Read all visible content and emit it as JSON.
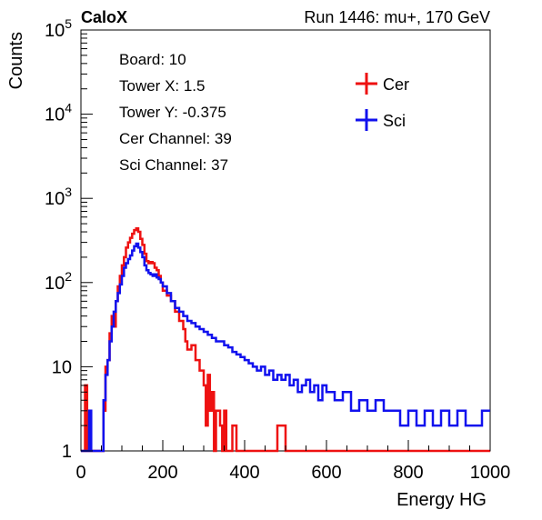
{
  "chart_data": {
    "type": "line",
    "title_left": "CaloX",
    "title_right": "Run 1446: mu+, 170 GeV",
    "xlabel": "Energy HG",
    "ylabel": "Counts",
    "xlim": [
      0,
      1000
    ],
    "ylim": [
      1,
      100000
    ],
    "y_scale": "log",
    "x_ticks": [
      "0",
      "200",
      "400",
      "600",
      "800",
      "1000"
    ],
    "y_ticks": [
      {
        "base": "1",
        "exp": ""
      },
      {
        "base": "10",
        "exp": ""
      },
      {
        "base": "10",
        "exp": "2"
      },
      {
        "base": "10",
        "exp": "3"
      },
      {
        "base": "10",
        "exp": "4"
      },
      {
        "base": "10",
        "exp": "5"
      }
    ],
    "info_box": [
      "Board: 10",
      "Tower X: 1.5",
      "Tower Y: -0.375",
      "Cer Channel: 39",
      "Sci Channel: 37"
    ],
    "legend_position": "top-right",
    "series": [
      {
        "name": "Cer",
        "color": "#ee1111",
        "points": [
          [
            0,
            1
          ],
          [
            10,
            6
          ],
          [
            15,
            1
          ],
          [
            20,
            1
          ],
          [
            30,
            1
          ],
          [
            40,
            1
          ],
          [
            50,
            1
          ],
          [
            55,
            3
          ],
          [
            60,
            10
          ],
          [
            65,
            12
          ],
          [
            70,
            25
          ],
          [
            75,
            40
          ],
          [
            80,
            30
          ],
          [
            85,
            60
          ],
          [
            90,
            90
          ],
          [
            95,
            120
          ],
          [
            100,
            160
          ],
          [
            105,
            200
          ],
          [
            110,
            260
          ],
          [
            115,
            300
          ],
          [
            120,
            340
          ],
          [
            125,
            380
          ],
          [
            130,
            420
          ],
          [
            135,
            440
          ],
          [
            140,
            400
          ],
          [
            145,
            330
          ],
          [
            150,
            280
          ],
          [
            155,
            220
          ],
          [
            160,
            180
          ],
          [
            165,
            170
          ],
          [
            170,
            175
          ],
          [
            175,
            170
          ],
          [
            180,
            150
          ],
          [
            185,
            140
          ],
          [
            190,
            120
          ],
          [
            195,
            100
          ],
          [
            200,
            80
          ],
          [
            210,
            70
          ],
          [
            220,
            60
          ],
          [
            230,
            45
          ],
          [
            240,
            35
          ],
          [
            250,
            28
          ],
          [
            255,
            20
          ],
          [
            260,
            16
          ],
          [
            270,
            18
          ],
          [
            280,
            12
          ],
          [
            290,
            9
          ],
          [
            300,
            6
          ],
          [
            305,
            2
          ],
          [
            310,
            8
          ],
          [
            315,
            3
          ],
          [
            320,
            5
          ],
          [
            325,
            1
          ],
          [
            330,
            3
          ],
          [
            340,
            2
          ],
          [
            345,
            1
          ],
          [
            350,
            3
          ],
          [
            355,
            1
          ],
          [
            360,
            1
          ],
          [
            370,
            2
          ],
          [
            380,
            1
          ],
          [
            390,
            1
          ],
          [
            400,
            1
          ],
          [
            420,
            1
          ],
          [
            440,
            1
          ],
          [
            460,
            1
          ],
          [
            480,
            2
          ],
          [
            500,
            1
          ],
          [
            520,
            1
          ],
          [
            540,
            1
          ],
          [
            560,
            1
          ],
          [
            580,
            1
          ],
          [
            600,
            1
          ],
          [
            650,
            1
          ],
          [
            700,
            1
          ],
          [
            750,
            1
          ],
          [
            800,
            1
          ],
          [
            850,
            1
          ],
          [
            900,
            1
          ],
          [
            950,
            1
          ],
          [
            1000,
            1
          ]
        ]
      },
      {
        "name": "Sci",
        "color": "#1111ee",
        "points": [
          [
            0,
            1
          ],
          [
            10,
            1
          ],
          [
            20,
            3
          ],
          [
            25,
            1
          ],
          [
            30,
            1
          ],
          [
            40,
            1
          ],
          [
            50,
            1
          ],
          [
            55,
            4
          ],
          [
            60,
            8
          ],
          [
            65,
            12
          ],
          [
            70,
            20
          ],
          [
            75,
            30
          ],
          [
            80,
            45
          ],
          [
            85,
            60
          ],
          [
            90,
            75
          ],
          [
            95,
            95
          ],
          [
            100,
            120
          ],
          [
            105,
            150
          ],
          [
            110,
            170
          ],
          [
            115,
            190
          ],
          [
            120,
            210
          ],
          [
            125,
            240
          ],
          [
            130,
            270
          ],
          [
            135,
            290
          ],
          [
            140,
            260
          ],
          [
            145,
            230
          ],
          [
            150,
            200
          ],
          [
            155,
            160
          ],
          [
            160,
            140
          ],
          [
            165,
            130
          ],
          [
            170,
            125
          ],
          [
            175,
            120
          ],
          [
            180,
            125
          ],
          [
            185,
            115
          ],
          [
            190,
            110
          ],
          [
            195,
            100
          ],
          [
            200,
            90
          ],
          [
            210,
            75
          ],
          [
            220,
            60
          ],
          [
            230,
            50
          ],
          [
            240,
            45
          ],
          [
            250,
            40
          ],
          [
            260,
            35
          ],
          [
            270,
            33
          ],
          [
            280,
            30
          ],
          [
            290,
            28
          ],
          [
            300,
            26
          ],
          [
            310,
            24
          ],
          [
            320,
            22
          ],
          [
            330,
            20
          ],
          [
            340,
            20
          ],
          [
            350,
            18
          ],
          [
            360,
            17
          ],
          [
            370,
            15
          ],
          [
            380,
            14
          ],
          [
            390,
            13
          ],
          [
            400,
            12
          ],
          [
            410,
            11
          ],
          [
            420,
            10
          ],
          [
            430,
            9
          ],
          [
            440,
            10
          ],
          [
            450,
            8
          ],
          [
            460,
            9
          ],
          [
            470,
            7
          ],
          [
            480,
            8
          ],
          [
            490,
            7
          ],
          [
            500,
            8
          ],
          [
            510,
            6
          ],
          [
            520,
            7
          ],
          [
            530,
            5
          ],
          [
            540,
            6
          ],
          [
            550,
            7
          ],
          [
            560,
            5
          ],
          [
            570,
            6
          ],
          [
            580,
            4
          ],
          [
            590,
            6
          ],
          [
            600,
            5
          ],
          [
            620,
            4
          ],
          [
            640,
            5
          ],
          [
            660,
            3
          ],
          [
            680,
            4
          ],
          [
            700,
            3
          ],
          [
            720,
            4
          ],
          [
            740,
            3
          ],
          [
            760,
            3
          ],
          [
            780,
            2
          ],
          [
            800,
            3
          ],
          [
            820,
            2
          ],
          [
            840,
            3
          ],
          [
            860,
            2
          ],
          [
            880,
            3
          ],
          [
            900,
            2
          ],
          [
            920,
            3
          ],
          [
            940,
            2
          ],
          [
            960,
            2
          ],
          [
            980,
            3
          ],
          [
            1000,
            2
          ]
        ]
      }
    ]
  }
}
